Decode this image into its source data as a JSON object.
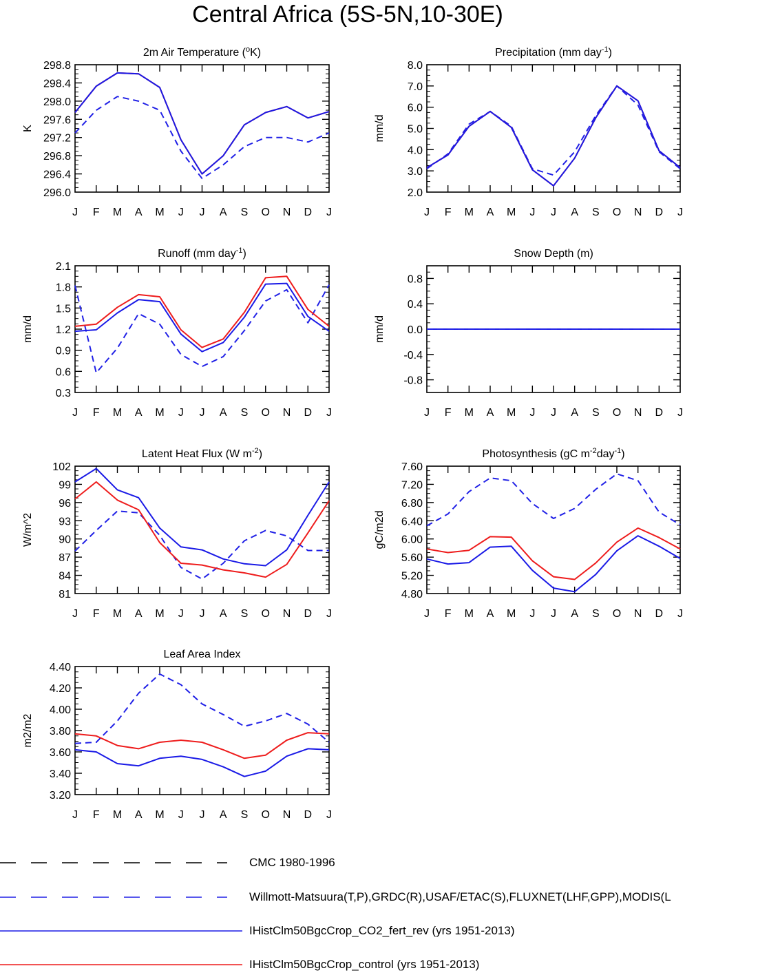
{
  "title": "Central Africa (5S-5N,10-30E)",
  "months": [
    "J",
    "F",
    "M",
    "A",
    "M",
    "J",
    "J",
    "A",
    "S",
    "O",
    "N",
    "D",
    "J"
  ],
  "colors": {
    "obs": "#2020e6",
    "cmc": "#000000",
    "co2": "#1a1ae6",
    "control": "#ee1c1c"
  },
  "legend": [
    {
      "key": "cmc",
      "label": "CMC 1980-1996",
      "color": "#000000",
      "style": "dashed"
    },
    {
      "key": "obs",
      "label": "Willmott-Matsuura(T,P),GRDC(R),USAF/ETAC(S),FLUXNET(LHF,GPP),MODIS(L",
      "color": "#2020e6",
      "style": "dashed"
    },
    {
      "key": "co2",
      "label": "IHistClm50BgcCrop_CO2_fert_rev (yrs 1951-2013)",
      "color": "#1a1ae6",
      "style": "solid"
    },
    {
      "key": "control",
      "label": "IHistClm50BgcCrop_control (yrs 1951-2013)",
      "color": "#ee1c1c",
      "style": "solid"
    }
  ],
  "chart_data": [
    {
      "id": "tsa",
      "type": "line",
      "title": "2m Air Temperature (",
      "title_sup": "o",
      "title_end": "K)",
      "ylabel": "K",
      "ylim": [
        296.0,
        298.8
      ],
      "yticks": [
        "296.0",
        "296.4",
        "296.8",
        "297.2",
        "297.6",
        "298.0",
        "298.4",
        "298.8"
      ],
      "series": [
        {
          "key": "obs",
          "style": "dashed",
          "values": [
            297.3,
            297.8,
            298.1,
            298.0,
            297.8,
            296.9,
            296.3,
            296.6,
            297.0,
            297.2,
            297.2,
            297.1,
            297.3
          ]
        },
        {
          "key": "control",
          "style": "solid",
          "values": [
            297.75,
            298.33,
            298.62,
            298.6,
            298.3,
            297.15,
            296.4,
            296.8,
            297.48,
            297.75,
            297.88,
            297.63,
            297.77
          ]
        },
        {
          "key": "co2",
          "style": "solid",
          "values": [
            297.75,
            298.33,
            298.62,
            298.6,
            298.3,
            297.15,
            296.4,
            296.8,
            297.48,
            297.75,
            297.88,
            297.63,
            297.77
          ]
        }
      ]
    },
    {
      "id": "prec",
      "type": "line",
      "title": "Precipitation (mm day",
      "title_sup": "-1",
      "title_end": ")",
      "ylabel": "mm/d",
      "ylim": [
        2.0,
        8.0
      ],
      "yticks": [
        "2.0",
        "3.0",
        "4.0",
        "5.0",
        "6.0",
        "7.0",
        "8.0"
      ],
      "series": [
        {
          "key": "obs",
          "style": "dashed",
          "values": [
            3.1,
            3.8,
            5.2,
            5.8,
            5.1,
            3.1,
            2.8,
            3.9,
            5.6,
            7.0,
            6.1,
            3.9,
            3.1
          ]
        },
        {
          "key": "control",
          "style": "solid",
          "values": [
            3.15,
            3.75,
            5.1,
            5.8,
            5.05,
            3.05,
            2.3,
            3.6,
            5.5,
            7.0,
            6.3,
            3.95,
            3.15
          ]
        },
        {
          "key": "co2",
          "style": "solid",
          "values": [
            3.15,
            3.75,
            5.1,
            5.8,
            5.05,
            3.05,
            2.3,
            3.6,
            5.5,
            7.0,
            6.3,
            3.95,
            3.15
          ]
        }
      ]
    },
    {
      "id": "runoff",
      "type": "line",
      "title": "Runoff (mm day",
      "title_sup": "-1",
      "title_end": ")",
      "ylabel": "mm/d",
      "ylim": [
        0.3,
        2.1
      ],
      "yticks": [
        "0.3",
        "0.6",
        "0.9",
        "1.2",
        "1.5",
        "1.8",
        "2.1"
      ],
      "series": [
        {
          "key": "obs",
          "style": "dashed",
          "values": [
            1.82,
            0.58,
            0.93,
            1.42,
            1.27,
            0.84,
            0.67,
            0.81,
            1.18,
            1.6,
            1.76,
            1.29,
            1.83
          ]
        },
        {
          "key": "control",
          "style": "solid",
          "values": [
            1.24,
            1.27,
            1.51,
            1.69,
            1.66,
            1.19,
            0.94,
            1.06,
            1.44,
            1.93,
            1.95,
            1.48,
            1.24
          ]
        },
        {
          "key": "co2",
          "style": "solid",
          "values": [
            1.17,
            1.19,
            1.43,
            1.62,
            1.59,
            1.13,
            0.88,
            1.01,
            1.37,
            1.84,
            1.85,
            1.38,
            1.17
          ]
        }
      ]
    },
    {
      "id": "snow",
      "type": "line",
      "title": "Snow Depth (m)",
      "title_sup": "",
      "title_end": "",
      "ylabel": "mm/d",
      "ylim": [
        -1.0,
        1.0
      ],
      "yticks": [
        "-0.8",
        "-0.4",
        "0.0",
        "0.4",
        "0.8"
      ],
      "series": [
        {
          "key": "control",
          "style": "solid",
          "values": [
            0,
            0,
            0,
            0,
            0,
            0,
            0,
            0,
            0,
            0,
            0,
            0,
            0
          ]
        },
        {
          "key": "co2",
          "style": "solid",
          "values": [
            0,
            0,
            0,
            0,
            0,
            0,
            0,
            0,
            0,
            0,
            0,
            0,
            0
          ]
        },
        {
          "key": "obs",
          "style": "dashed",
          "values": [
            0,
            0,
            0,
            0,
            0,
            0,
            0,
            0,
            0,
            0,
            0,
            0,
            0
          ]
        }
      ]
    },
    {
      "id": "lhf",
      "type": "line",
      "title": "Latent Heat Flux (W m",
      "title_sup": "-2",
      "title_end": ")",
      "ylabel": "W/m^2",
      "ylim": [
        81,
        102
      ],
      "yticks": [
        "81",
        "84",
        "87",
        "90",
        "93",
        "96",
        "99",
        "102"
      ],
      "series": [
        {
          "key": "obs",
          "style": "dashed",
          "values": [
            88.0,
            91.4,
            94.6,
            94.3,
            90.6,
            85.3,
            83.4,
            86.0,
            89.7,
            91.4,
            90.5,
            88.1,
            88.1
          ]
        },
        {
          "key": "control",
          "style": "solid",
          "values": [
            96.6,
            99.4,
            96.4,
            94.8,
            89.4,
            86.0,
            85.7,
            84.9,
            84.4,
            83.7,
            85.8,
            91.0,
            96.3
          ]
        },
        {
          "key": "co2",
          "style": "solid",
          "values": [
            99.4,
            101.6,
            98.1,
            96.8,
            91.8,
            88.7,
            88.2,
            86.7,
            85.9,
            85.6,
            88.2,
            93.9,
            99.4
          ]
        }
      ]
    },
    {
      "id": "gpp",
      "type": "line",
      "title": "Photosynthesis (gC m",
      "title_sup": "-2",
      "title_end": "day",
      "title_sup2": "-1",
      "title_end2": ")",
      "ylabel": "gC/m2d",
      "ylim": [
        4.8,
        7.6
      ],
      "yticks": [
        "4.80",
        "5.20",
        "5.60",
        "6.00",
        "6.40",
        "6.80",
        "7.20",
        "7.60"
      ],
      "series": [
        {
          "key": "obs",
          "style": "dashed",
          "values": [
            6.29,
            6.55,
            7.04,
            7.34,
            7.28,
            6.78,
            6.45,
            6.67,
            7.09,
            7.43,
            7.28,
            6.59,
            6.31
          ]
        },
        {
          "key": "control",
          "style": "solid",
          "values": [
            5.78,
            5.7,
            5.75,
            6.05,
            6.04,
            5.52,
            5.17,
            5.11,
            5.47,
            5.93,
            6.24,
            6.03,
            5.78
          ]
        },
        {
          "key": "co2",
          "style": "solid",
          "values": [
            5.56,
            5.45,
            5.48,
            5.82,
            5.84,
            5.31,
            4.92,
            4.84,
            5.22,
            5.74,
            6.07,
            5.84,
            5.57
          ]
        }
      ]
    },
    {
      "id": "lai",
      "type": "line",
      "title": "Leaf Area Index",
      "title_sup": "",
      "title_end": "",
      "ylabel": "m2/m2",
      "ylim": [
        3.2,
        4.4
      ],
      "yticks": [
        "3.20",
        "3.40",
        "3.60",
        "3.80",
        "4.00",
        "4.20",
        "4.40"
      ],
      "series": [
        {
          "key": "obs",
          "style": "dashed",
          "values": [
            3.68,
            3.69,
            3.89,
            4.15,
            4.33,
            4.23,
            4.05,
            3.95,
            3.84,
            3.89,
            3.96,
            3.86,
            3.69
          ]
        },
        {
          "key": "control",
          "style": "solid",
          "values": [
            3.77,
            3.75,
            3.66,
            3.63,
            3.69,
            3.71,
            3.69,
            3.62,
            3.54,
            3.57,
            3.71,
            3.78,
            3.77
          ]
        },
        {
          "key": "co2",
          "style": "solid",
          "values": [
            3.62,
            3.6,
            3.49,
            3.47,
            3.54,
            3.56,
            3.53,
            3.46,
            3.37,
            3.42,
            3.56,
            3.63,
            3.62
          ]
        }
      ]
    }
  ]
}
